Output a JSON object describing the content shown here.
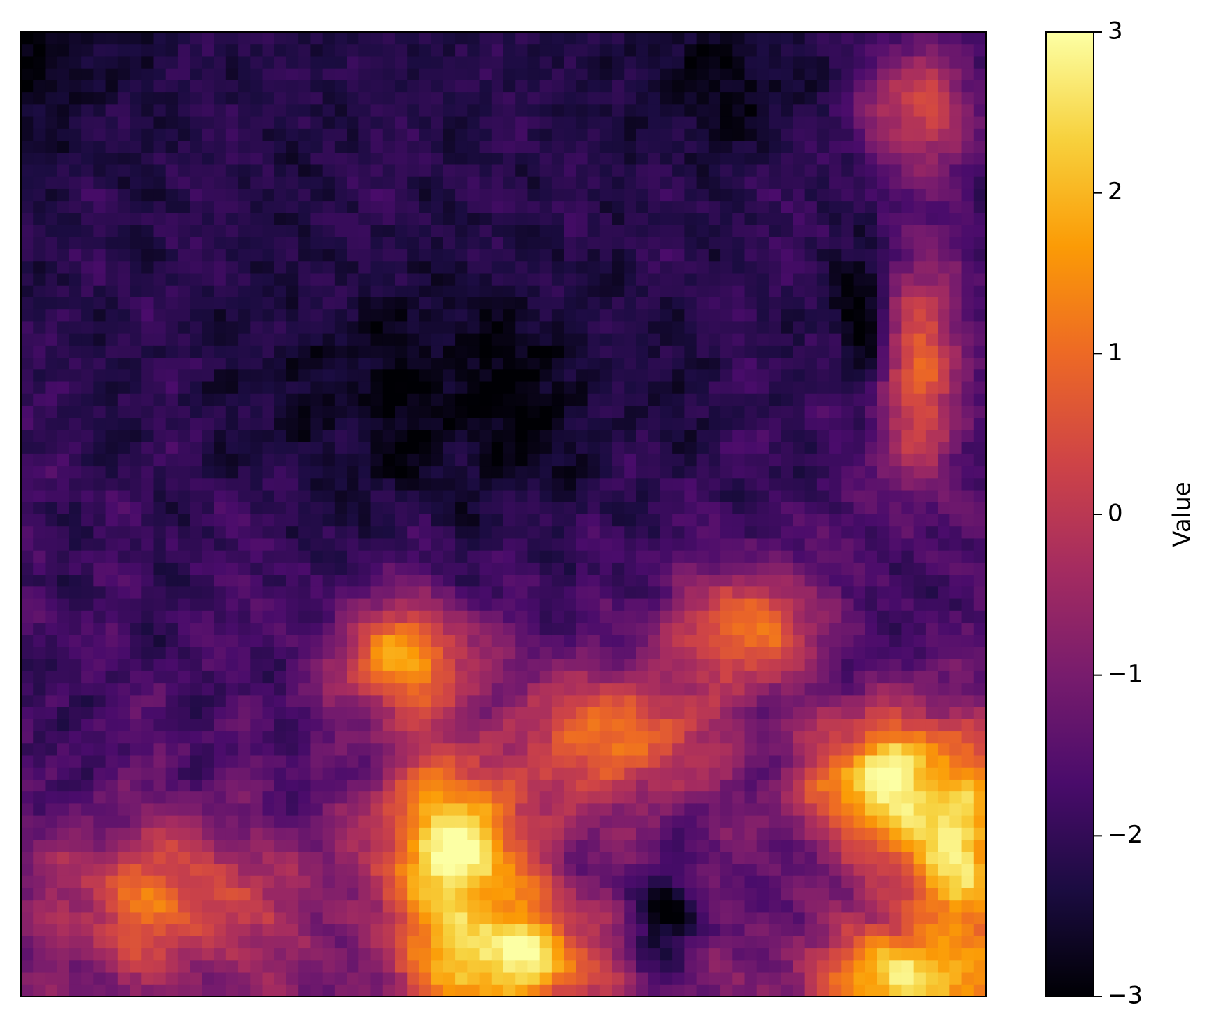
{
  "chart_data": {
    "type": "heatmap",
    "title": "",
    "xlabel": "",
    "ylabel": "",
    "x_ticks_visible": false,
    "y_ticks_visible": false,
    "colormap": "inferno",
    "colormap_stops": [
      "#000004",
      "#1b0c41",
      "#4a0c6b",
      "#781c6d",
      "#a52c60",
      "#cf4446",
      "#ed6925",
      "#fb9b06",
      "#f7d13d",
      "#fcffa4"
    ],
    "vmin": -3,
    "vmax": 3,
    "colorbar": {
      "label": "Value",
      "ticks": [
        {
          "value": 3,
          "label": "3"
        },
        {
          "value": 2,
          "label": "2"
        },
        {
          "value": 1,
          "label": "1"
        },
        {
          "value": 0,
          "label": "0"
        },
        {
          "value": -1,
          "label": "−1"
        },
        {
          "value": -2,
          "label": "−2"
        },
        {
          "value": -3,
          "label": "−3"
        }
      ]
    },
    "field_features": [
      {
        "kind": "background",
        "value": -2.2
      },
      {
        "kind": "ridge",
        "u": 0.15,
        "v": 0.9,
        "value": 0.9,
        "spread_u": 0.12,
        "spread_v": 0.08
      },
      {
        "kind": "ridge",
        "u": 0.45,
        "v": 0.85,
        "value": 3.0,
        "spread_u": 0.08,
        "spread_v": 0.1
      },
      {
        "kind": "ridge",
        "u": 0.5,
        "v": 0.96,
        "value": 3.0,
        "spread_u": 0.09,
        "spread_v": 0.06
      },
      {
        "kind": "ridge",
        "u": 0.4,
        "v": 0.65,
        "value": 1.8,
        "spread_u": 0.07,
        "spread_v": 0.06
      },
      {
        "kind": "ridge",
        "u": 0.62,
        "v": 0.73,
        "value": 1.2,
        "spread_u": 0.1,
        "spread_v": 0.07
      },
      {
        "kind": "ridge",
        "u": 0.9,
        "v": 0.78,
        "value": 3.0,
        "spread_u": 0.08,
        "spread_v": 0.07
      },
      {
        "kind": "ridge",
        "u": 0.97,
        "v": 0.85,
        "value": 3.0,
        "spread_u": 0.05,
        "spread_v": 0.1
      },
      {
        "kind": "ridge",
        "u": 0.75,
        "v": 0.62,
        "value": 1.3,
        "spread_u": 0.07,
        "spread_v": 0.06
      },
      {
        "kind": "ridge",
        "u": 0.93,
        "v": 0.35,
        "value": 0.8,
        "spread_u": 0.05,
        "spread_v": 0.12
      },
      {
        "kind": "ridge",
        "u": 0.93,
        "v": 0.08,
        "value": 0.4,
        "spread_u": 0.06,
        "spread_v": 0.07
      },
      {
        "kind": "ridge",
        "u": 0.93,
        "v": 0.98,
        "value": 2.6,
        "spread_u": 0.1,
        "spread_v": 0.05
      },
      {
        "kind": "basin",
        "u": 0.0,
        "v": 0.0,
        "value": -3.0,
        "spread_u": 0.1,
        "spread_v": 0.1
      },
      {
        "kind": "basin",
        "u": 0.45,
        "v": 0.38,
        "value": -2.9,
        "spread_u": 0.2,
        "spread_v": 0.12
      },
      {
        "kind": "basin",
        "u": 0.72,
        "v": 0.05,
        "value": -2.8,
        "spread_u": 0.09,
        "spread_v": 0.07
      },
      {
        "kind": "basin",
        "u": 0.87,
        "v": 0.3,
        "value": -3.0,
        "spread_u": 0.03,
        "spread_v": 0.08
      },
      {
        "kind": "basin",
        "u": 0.67,
        "v": 0.92,
        "value": -2.7,
        "spread_u": 0.04,
        "spread_v": 0.05
      }
    ]
  }
}
